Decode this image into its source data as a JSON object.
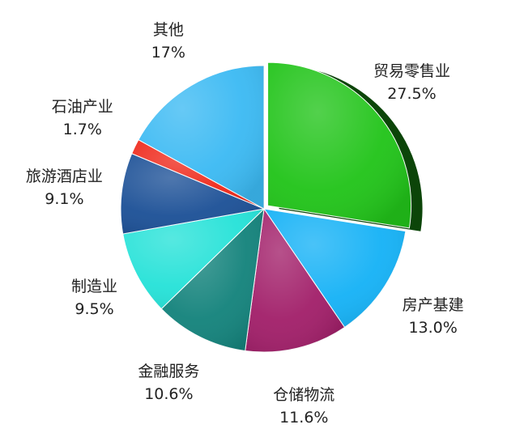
{
  "chart_data": {
    "type": "pie",
    "title": "",
    "start_angle_deg": 0,
    "direction": "clockwise",
    "slices": [
      {
        "label": "贸易零售业",
        "value": 27.5,
        "display": "27.5%",
        "color": "#22c41a",
        "explode": true
      },
      {
        "label": "房产基建",
        "value": 13.0,
        "display": "13.0%",
        "color": "#16b2f6"
      },
      {
        "label": "仓储物流",
        "value": 11.6,
        "display": "11.6%",
        "color": "#a2206a"
      },
      {
        "label": "金融服务",
        "value": 10.6,
        "display": "10.6%",
        "color": "#14837c"
      },
      {
        "label": "制造业",
        "value": 9.5,
        "display": "9.5%",
        "color": "#26e2d8"
      },
      {
        "label": "旅游酒店业",
        "value": 9.1,
        "display": "9.1%",
        "color": "#1d5197"
      },
      {
        "label": "石油产业",
        "value": 1.7,
        "display": "1.7%",
        "color": "#ef2a1c"
      },
      {
        "label": "其他",
        "value": 17.0,
        "display": "17%",
        "color": "#3cbaf3"
      }
    ]
  }
}
